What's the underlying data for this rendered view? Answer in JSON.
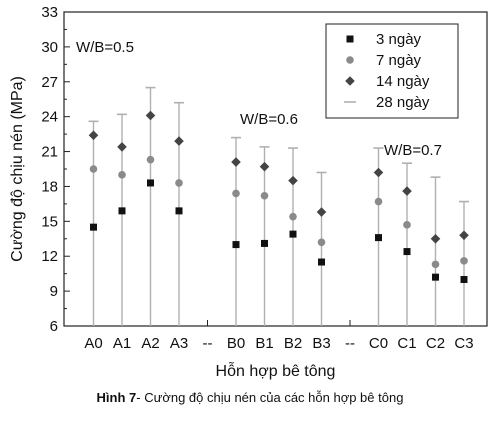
{
  "chart_data": {
    "type": "scatter",
    "ylabel": "Cường độ chịu nén (MPa)",
    "xlabel": "Hỗn hợp bê tông",
    "ylim": [
      6,
      33
    ],
    "yticks": [
      6,
      9,
      12,
      15,
      18,
      21,
      24,
      27,
      30,
      33
    ],
    "categories": [
      "A0",
      "A1",
      "A2",
      "A3",
      "--",
      "B0",
      "B1",
      "B2",
      "B3",
      "--",
      "C0",
      "C1",
      "C2",
      "C3"
    ],
    "series": [
      {
        "name": "3 ngày",
        "marker": "square",
        "color": "#111111",
        "values": [
          14.5,
          15.9,
          18.3,
          15.9,
          null,
          13.0,
          13.1,
          13.9,
          11.5,
          null,
          13.6,
          12.4,
          10.2,
          10.0
        ]
      },
      {
        "name": "7 ngày",
        "marker": "circle",
        "color": "#8a8a8a",
        "values": [
          19.5,
          19.0,
          20.3,
          18.3,
          null,
          17.4,
          17.2,
          15.4,
          13.2,
          null,
          16.7,
          14.7,
          11.3,
          11.6
        ]
      },
      {
        "name": "14 ngày",
        "marker": "diamond",
        "color": "#444444",
        "values": [
          22.4,
          21.4,
          24.1,
          21.9,
          null,
          20.1,
          19.7,
          18.5,
          15.8,
          null,
          19.2,
          17.6,
          13.5,
          13.8
        ]
      },
      {
        "name": "28 ngày",
        "marker": "dash",
        "color": "#b0b0b0",
        "values": [
          23.6,
          24.2,
          26.5,
          25.2,
          null,
          22.2,
          21.4,
          21.3,
          19.2,
          null,
          21.3,
          20.0,
          18.8,
          16.7
        ]
      }
    ],
    "annotations": [
      "W/B=0.5",
      "W/B=0.6",
      "W/B=0.7"
    ],
    "legend_position": "top-right",
    "grid": false
  },
  "caption": {
    "label": "Hình 7",
    "text": "- Cường độ chịu nén của các hỗn hợp bê tông"
  }
}
